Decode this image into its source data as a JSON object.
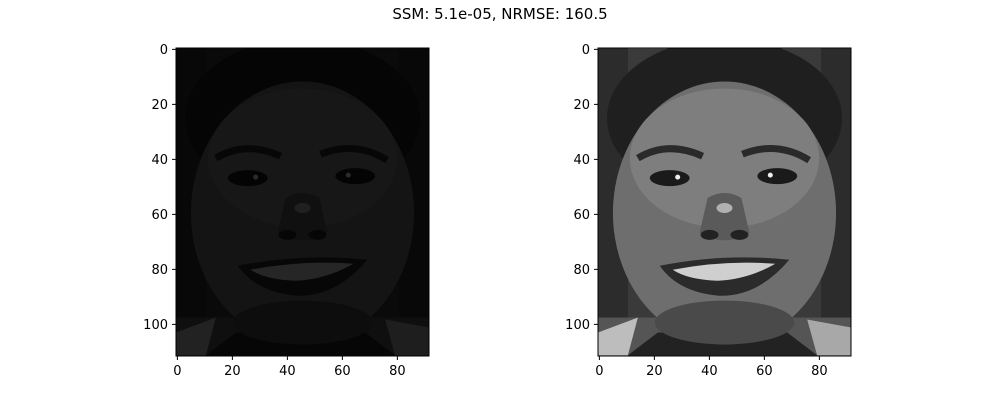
{
  "figure": {
    "title": "SSM: 5.1e-05, NRMSE: 160.5"
  },
  "panels": [
    {
      "x_ticks": [
        "0",
        "20",
        "40",
        "60",
        "80"
      ],
      "y_ticks": [
        "0",
        "20",
        "40",
        "60",
        "80",
        "100"
      ],
      "xlim": [
        -0.5,
        91.5
      ],
      "ylim": [
        111.5,
        -0.5
      ],
      "image": "dark low-contrast grayscale face (reconstruction)",
      "brightness": 0.18
    },
    {
      "x_ticks": [
        "0",
        "20",
        "40",
        "60",
        "80"
      ],
      "y_ticks": [
        "0",
        "20",
        "40",
        "60",
        "80",
        "100"
      ],
      "xlim": [
        -0.5,
        91.5
      ],
      "ylim": [
        111.5,
        -0.5
      ],
      "image": "grayscale face photograph (original)",
      "brightness": 1.0
    }
  ],
  "colors": {
    "frame": "#000000",
    "background": "#ffffff"
  }
}
